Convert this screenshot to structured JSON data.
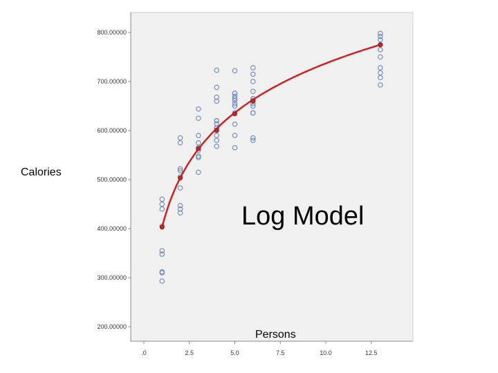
{
  "chart_data": {
    "type": "scatter",
    "annotation": "Log Model",
    "xlabel": "Persons",
    "ylabel": "Calories",
    "xlim": [
      -0.5,
      15
    ],
    "ylim": [
      175,
      825
    ],
    "xticks": [
      0,
      2.5,
      5.0,
      7.5,
      10.0,
      12.5
    ],
    "xtick_labels": [
      ".0",
      "2.5",
      "5.0",
      "7.5",
      "10.0",
      "12.5"
    ],
    "yticks": [
      200,
      300,
      400,
      500,
      600,
      700,
      800
    ],
    "ytick_labels": [
      "200.00000",
      "300.00000",
      "400.00000",
      "500.00000",
      "600.00000",
      "700.00000",
      "800.00000"
    ],
    "grid": false,
    "colors": {
      "plot_background": "#f0f0f0",
      "frame": "#cccccc",
      "points": "#6f86b8",
      "fit_line": "#cc2222"
    },
    "series": [
      {
        "kind": "observed",
        "x": [
          1,
          1,
          1,
          1,
          1,
          1,
          1,
          1,
          1,
          2,
          2,
          2,
          2,
          2,
          2,
          2,
          2,
          2,
          2,
          3,
          3,
          3,
          3,
          3,
          3,
          3,
          3,
          3,
          3,
          4,
          4,
          4,
          4,
          4,
          4,
          4,
          4,
          4,
          4,
          4,
          4,
          4,
          5,
          5,
          5,
          5,
          5,
          5,
          5,
          5,
          5,
          5,
          5,
          5,
          5,
          5,
          6,
          6,
          6,
          6,
          6,
          6,
          6,
          6,
          6,
          6,
          6,
          6,
          6,
          13,
          13,
          13,
          13,
          13,
          13,
          13,
          13,
          13,
          13
        ],
        "y": [
          460,
          450,
          440,
          405,
          355,
          348,
          312,
          310,
          293,
          585,
          575,
          522,
          518,
          505,
          483,
          447,
          440,
          432,
          505,
          644,
          625,
          590,
          575,
          565,
          560,
          548,
          545,
          515,
          565,
          723,
          688,
          668,
          660,
          620,
          614,
          605,
          600,
          590,
          580,
          568,
          620,
          605,
          722,
          676,
          670,
          666,
          662,
          655,
          650,
          636,
          613,
          590,
          565,
          676,
          662,
          636,
          728,
          715,
          700,
          680,
          665,
          655,
          650,
          636,
          585,
          580,
          665,
          636,
          660,
          798,
          792,
          785,
          775,
          765,
          750,
          728,
          718,
          708,
          693
        ],
        "mark_y": [
          460,
          450,
          440,
          405,
          355,
          348,
          312,
          310,
          293,
          585,
          575,
          522,
          518,
          505,
          483,
          447,
          440,
          432,
          505,
          644,
          625,
          590,
          575,
          565,
          560,
          548,
          545,
          515,
          565,
          723,
          688,
          668,
          660,
          620,
          614,
          605,
          600,
          590,
          580,
          568,
          620,
          605,
          722,
          676,
          670,
          666,
          662,
          655,
          650,
          636,
          613,
          590,
          565,
          676,
          662,
          636,
          728,
          715,
          700,
          680,
          665,
          655,
          650,
          636,
          585,
          580,
          665,
          636,
          660,
          798,
          792,
          785,
          775,
          765,
          750,
          728,
          718,
          708,
          693
        ]
      },
      {
        "kind": "log-model-fit",
        "x": [
          1,
          2,
          3,
          4,
          5,
          6,
          13
        ],
        "y": [
          403,
          503,
          563,
          601,
          634,
          661,
          775
        ]
      }
    ]
  }
}
